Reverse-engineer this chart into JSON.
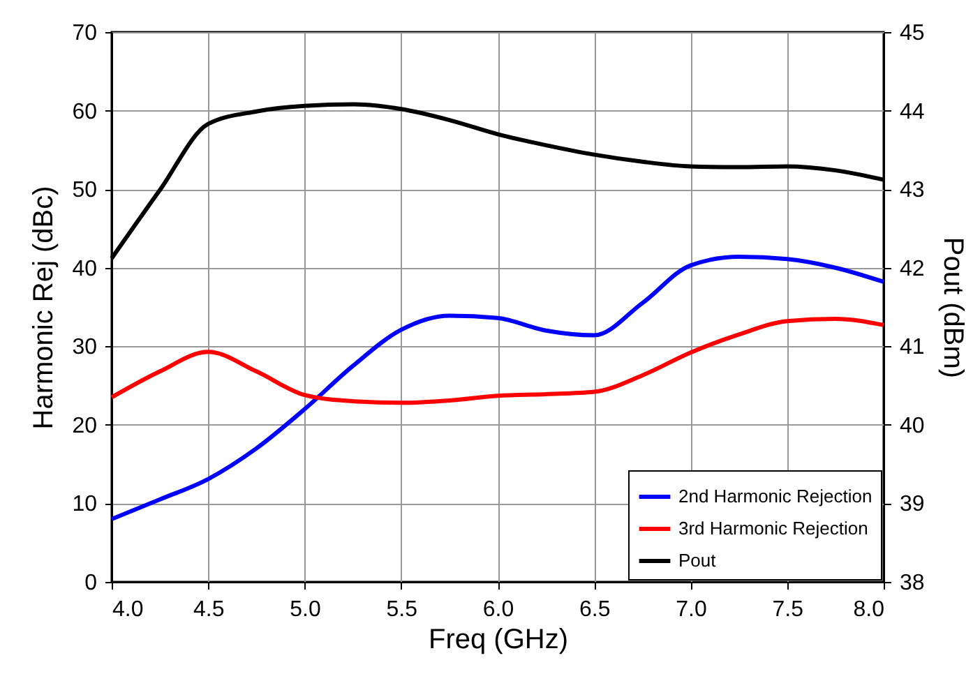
{
  "chart_data": {
    "type": "line",
    "xlabel": "Freq (GHz)",
    "ylabel": "Harmonic Rej (dBc)",
    "y2label": "Pout (dBm)",
    "x": [
      4.0,
      4.25,
      4.5,
      4.75,
      5.0,
      5.25,
      5.5,
      5.75,
      6.0,
      6.25,
      6.5,
      6.75,
      7.0,
      7.25,
      7.5,
      7.75,
      8.0
    ],
    "series": [
      {
        "name": "2nd Harmonic Rejection",
        "color": "#0000ff",
        "values": [
          8.0,
          10.5,
          13.1,
          17.0,
          22.0,
          27.5,
          32.1,
          33.9,
          33.6,
          32.0,
          31.4,
          35.5,
          40.3,
          41.4,
          41.1,
          40.0,
          38.2
        ]
      },
      {
        "name": "3rd Harmonic Rejection",
        "color": "#ff0000",
        "values": [
          23.5,
          26.8,
          29.3,
          26.8,
          23.8,
          23.0,
          22.8,
          23.1,
          23.7,
          23.9,
          24.2,
          26.3,
          29.2,
          31.5,
          33.2,
          33.5,
          32.7
        ]
      },
      {
        "name": "Pout",
        "color": "#000000",
        "axis": "y2",
        "values": [
          42.12,
          42.99,
          43.83,
          43.99,
          44.06,
          44.08,
          44.02,
          43.88,
          43.7,
          43.56,
          43.44,
          43.35,
          43.29,
          43.28,
          43.29,
          43.24,
          43.12
        ]
      }
    ],
    "xlim": [
      4.0,
      8.0
    ],
    "xticks": [
      {
        "value": 4.0,
        "label": "4.0"
      },
      {
        "value": 4.5,
        "label": "4.5"
      },
      {
        "value": 5.0,
        "label": "5.0"
      },
      {
        "value": 5.5,
        "label": "5.5"
      },
      {
        "value": 6.0,
        "label": "6.0"
      },
      {
        "value": 6.5,
        "label": "6.5"
      },
      {
        "value": 7.0,
        "label": "7.0"
      },
      {
        "value": 7.5,
        "label": "7.5"
      },
      {
        "value": 8.0,
        "label": "8.0"
      }
    ],
    "ylim": [
      0,
      70
    ],
    "yticks": [
      0,
      10,
      20,
      30,
      40,
      50,
      60,
      70
    ],
    "y2lim": [
      38,
      45
    ],
    "y2ticks": [
      38,
      39,
      40,
      41,
      42,
      43,
      44,
      45
    ],
    "grid": true,
    "legend": "bottom right",
    "marker": "none",
    "line_style": "solid"
  }
}
